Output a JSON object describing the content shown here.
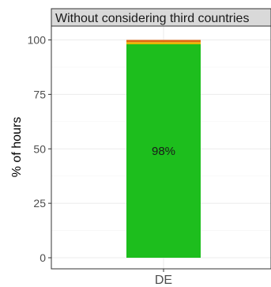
{
  "chart_data": {
    "type": "bar",
    "stacked": true,
    "facet_title": "Without considering third countries",
    "categories": [
      "DE"
    ],
    "series": [
      {
        "values": [
          98
        ],
        "color": "#1dbe1d"
      },
      {
        "values": [
          1
        ],
        "color": "#e6b800"
      },
      {
        "values": [
          1
        ],
        "color": "#e06a10"
      }
    ],
    "data_labels": [
      "98%"
    ],
    "ylabel": "% of hours",
    "xlabel": "",
    "ylim": [
      0,
      100
    ],
    "yticks": [
      0,
      25,
      50,
      75,
      100
    ],
    "grid": true,
    "legend": "none"
  }
}
